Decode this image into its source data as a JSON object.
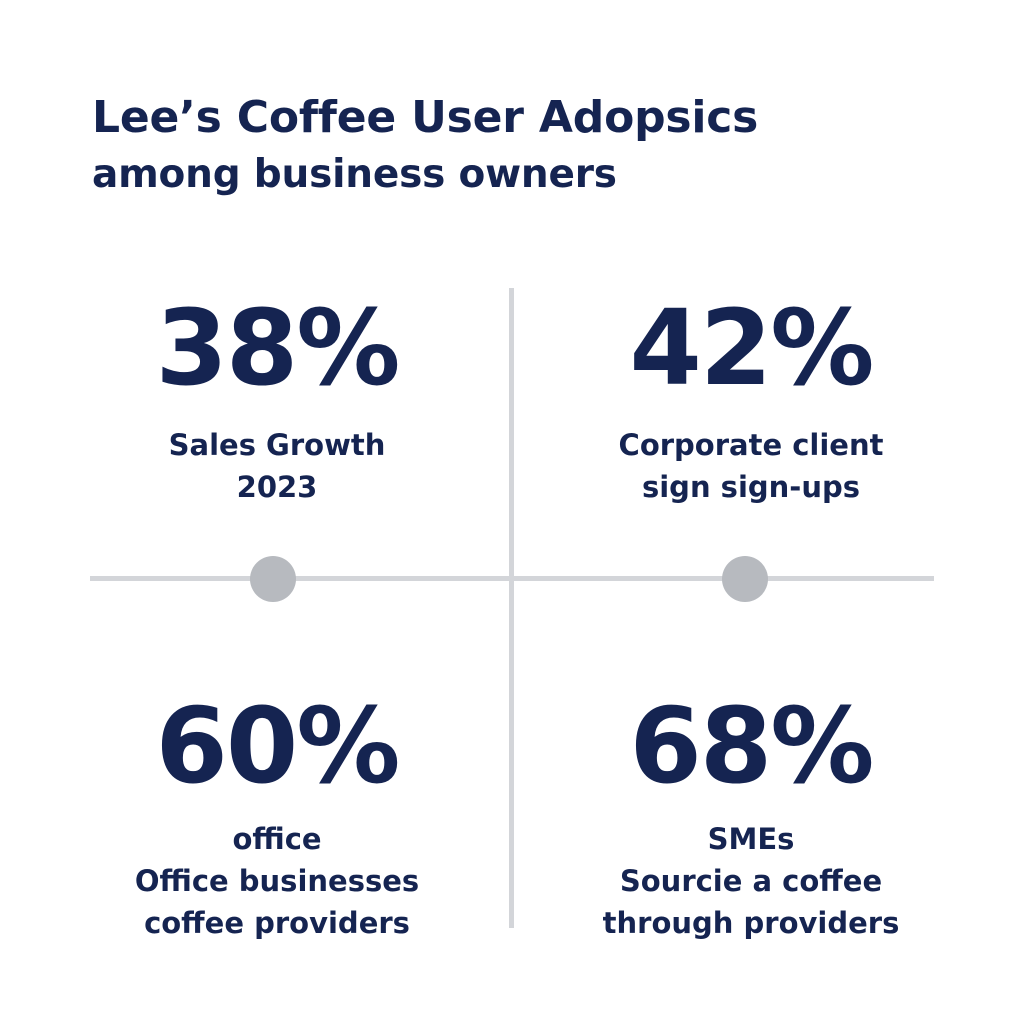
{
  "title": {
    "line1": "Lee’s Coffee User Adopsics",
    "line2": "among business owners"
  },
  "stats": [
    {
      "value": "38%",
      "label_lines": [
        "Sales Growth",
        "2023"
      ]
    },
    {
      "value": "42%",
      "label_lines": [
        "Corporate client",
        "sign sign-ups"
      ]
    },
    {
      "value": "60%",
      "label_lines": [
        "office",
        "Office businesses",
        "coffee providers"
      ]
    },
    {
      "value": "68%",
      "label_lines": [
        "SMEs",
        "Sourcie a coffee",
        "through providers"
      ]
    }
  ],
  "colors": {
    "text": "#152451",
    "divider": "#d3d5d9",
    "dot": "#b7babf",
    "background": "#ffffff"
  }
}
